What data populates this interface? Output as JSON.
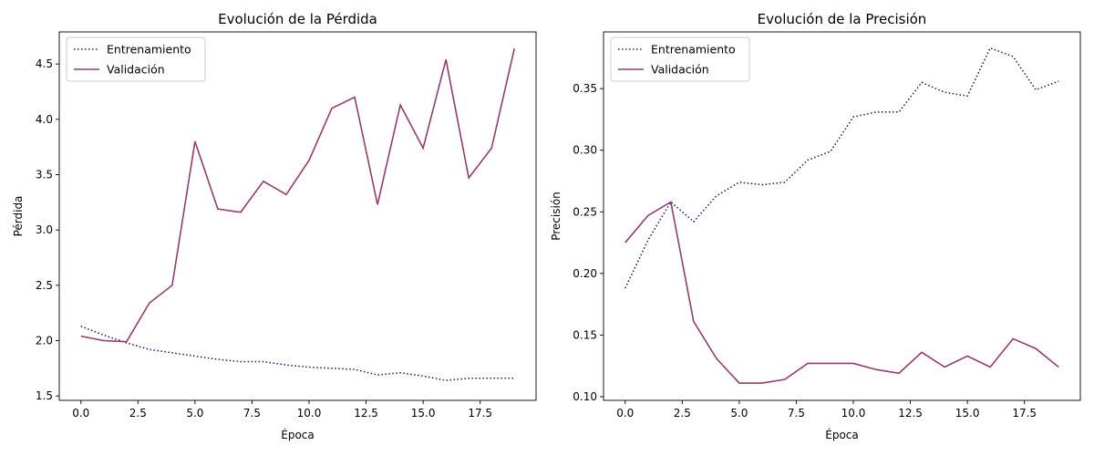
{
  "chart_data": [
    {
      "type": "line",
      "title": "Evolución de la Pérdida",
      "xlabel": "Época",
      "ylabel": "Pérdida",
      "xlim": [
        -0.95,
        19.95
      ],
      "ylim": [
        1.46,
        4.79
      ],
      "xticks": [
        0.0,
        2.5,
        5.0,
        7.5,
        10.0,
        12.5,
        15.0,
        17.5
      ],
      "xtick_labels": [
        "0.0",
        "2.5",
        "5.0",
        "7.5",
        "10.0",
        "12.5",
        "15.0",
        "17.5"
      ],
      "yticks": [
        1.5,
        2.0,
        2.5,
        3.0,
        3.5,
        4.0,
        4.5
      ],
      "ytick_labels": [
        "1.5",
        "2.0",
        "2.5",
        "3.0",
        "3.5",
        "4.0",
        "4.5"
      ],
      "legend_position": "top-left",
      "x": [
        0,
        1,
        2,
        3,
        4,
        5,
        6,
        7,
        8,
        9,
        10,
        11,
        12,
        13,
        14,
        15,
        16,
        17,
        18,
        19
      ],
      "series": [
        {
          "name": "Entrenamiento",
          "style": "dotted",
          "color": "#2b1c6b",
          "values": [
            2.13,
            2.05,
            1.98,
            1.92,
            1.89,
            1.86,
            1.83,
            1.81,
            1.81,
            1.78,
            1.76,
            1.75,
            1.74,
            1.69,
            1.71,
            1.68,
            1.64,
            1.66,
            1.66,
            1.66
          ]
        },
        {
          "name": "Validación",
          "style": "solid",
          "color": "#933c6e",
          "values": [
            2.04,
            2.0,
            1.99,
            2.34,
            2.5,
            3.8,
            3.19,
            3.16,
            3.44,
            3.32,
            3.63,
            4.1,
            4.2,
            3.23,
            4.13,
            3.74,
            4.54,
            3.47,
            3.74,
            4.64
          ]
        }
      ]
    },
    {
      "type": "line",
      "title": "Evolución de la Precisión",
      "xlabel": "Época",
      "ylabel": "Precisión",
      "xlim": [
        -0.95,
        19.95
      ],
      "ylim": [
        0.097,
        0.396
      ],
      "xticks": [
        0.0,
        2.5,
        5.0,
        7.5,
        10.0,
        12.5,
        15.0,
        17.5
      ],
      "xtick_labels": [
        "0.0",
        "2.5",
        "5.0",
        "7.5",
        "10.0",
        "12.5",
        "15.0",
        "17.5"
      ],
      "yticks": [
        0.1,
        0.15,
        0.2,
        0.25,
        0.3,
        0.35
      ],
      "ytick_labels": [
        "0.10",
        "0.15",
        "0.20",
        "0.25",
        "0.30",
        "0.35"
      ],
      "legend_position": "top-left",
      "x": [
        0,
        1,
        2,
        3,
        4,
        5,
        6,
        7,
        8,
        9,
        10,
        11,
        12,
        13,
        14,
        15,
        16,
        17,
        18,
        19
      ],
      "series": [
        {
          "name": "Entrenamiento",
          "style": "dotted",
          "color": "#2b1c6b",
          "values": [
            0.188,
            0.227,
            0.258,
            0.242,
            0.263,
            0.274,
            0.272,
            0.274,
            0.292,
            0.299,
            0.327,
            0.331,
            0.331,
            0.355,
            0.347,
            0.344,
            0.383,
            0.376,
            0.349,
            0.356
          ]
        },
        {
          "name": "Validación",
          "style": "solid",
          "color": "#933c6e",
          "values": [
            0.225,
            0.247,
            0.258,
            0.161,
            0.131,
            0.111,
            0.111,
            0.114,
            0.127,
            0.127,
            0.127,
            0.122,
            0.119,
            0.136,
            0.124,
            0.133,
            0.124,
            0.147,
            0.139,
            0.124
          ]
        }
      ]
    }
  ]
}
